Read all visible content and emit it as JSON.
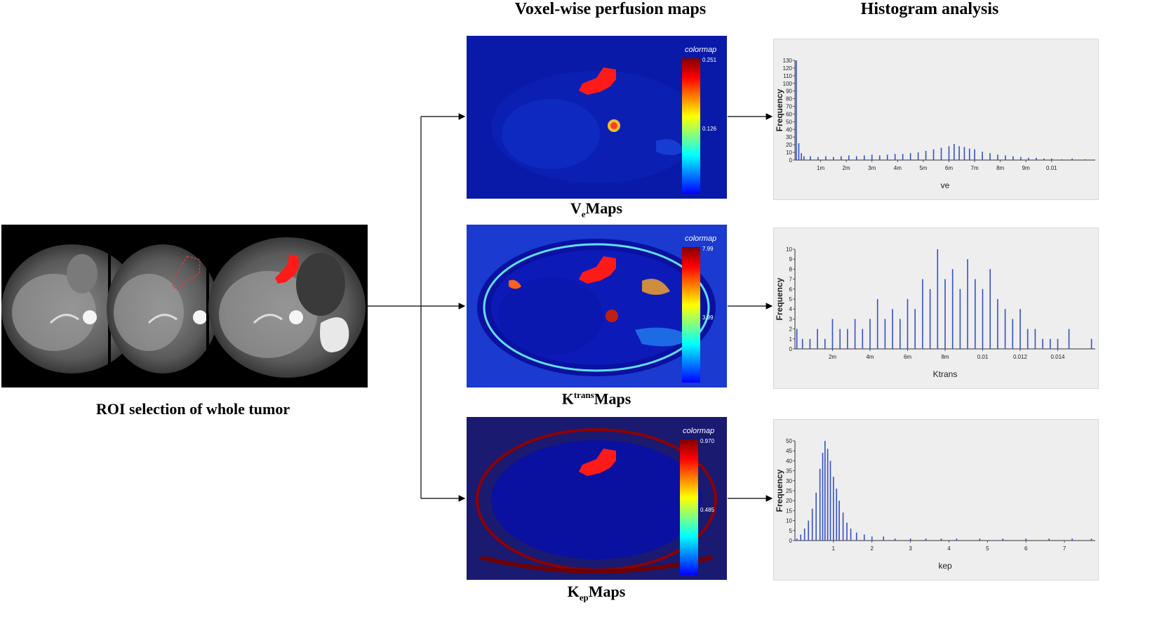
{
  "headings": {
    "perfusion": "Voxel-wise perfusion maps",
    "histogram": "Histogram analysis"
  },
  "roi": {
    "caption": "ROI selection of whole  tumor"
  },
  "maps": [
    {
      "id": "ve",
      "label_main": "V",
      "label_sub": "e",
      "label_rest": "Maps",
      "label_pos": "sub",
      "colorbar": {
        "title": "colormap",
        "max": "0.251",
        "mid": "0.126"
      }
    },
    {
      "id": "ktrans",
      "label_main": "K",
      "label_sub": "trans",
      "label_rest": "Maps",
      "label_pos": "sup",
      "colorbar": {
        "title": "colormap",
        "max": "7.99",
        "mid": "3.99"
      }
    },
    {
      "id": "kep",
      "label_main": "K",
      "label_sub": "ep",
      "label_rest": "Maps",
      "label_pos": "sub",
      "colorbar": {
        "title": "colormap",
        "max": "0.970",
        "mid": "0.485"
      }
    }
  ],
  "chart_data": [
    {
      "type": "bar",
      "xlabel": "ve",
      "ylabel": "Frequency",
      "xlim": [
        0,
        0.0117
      ],
      "ylim": [
        0,
        130
      ],
      "x_ticks": [
        {
          "value": 0.001,
          "label": "1m"
        },
        {
          "value": 0.002,
          "label": "2m"
        },
        {
          "value": 0.003,
          "label": "3m"
        },
        {
          "value": 0.004,
          "label": "4m"
        },
        {
          "value": 0.005,
          "label": "5m"
        },
        {
          "value": 0.006,
          "label": "6m"
        },
        {
          "value": 0.007,
          "label": "7m"
        },
        {
          "value": 0.008,
          "label": "8m"
        },
        {
          "value": 0.009,
          "label": "9m"
        },
        {
          "value": 0.01,
          "label": "0.01"
        }
      ],
      "y_ticks": [
        0,
        10,
        20,
        30,
        40,
        50,
        60,
        70,
        80,
        90,
        100,
        110,
        120,
        130
      ],
      "bins": [
        {
          "x": 5e-05,
          "y": 130
        },
        {
          "x": 0.00015,
          "y": 22
        },
        {
          "x": 0.00025,
          "y": 9
        },
        {
          "x": 0.00035,
          "y": 5
        },
        {
          "x": 0.0006,
          "y": 5
        },
        {
          "x": 0.0009,
          "y": 4
        },
        {
          "x": 0.0012,
          "y": 5
        },
        {
          "x": 0.0015,
          "y": 4
        },
        {
          "x": 0.0018,
          "y": 5
        },
        {
          "x": 0.0021,
          "y": 6
        },
        {
          "x": 0.0024,
          "y": 5
        },
        {
          "x": 0.0027,
          "y": 6
        },
        {
          "x": 0.003,
          "y": 7
        },
        {
          "x": 0.0033,
          "y": 6
        },
        {
          "x": 0.0036,
          "y": 7
        },
        {
          "x": 0.0039,
          "y": 8
        },
        {
          "x": 0.0042,
          "y": 8
        },
        {
          "x": 0.0045,
          "y": 9
        },
        {
          "x": 0.0048,
          "y": 10
        },
        {
          "x": 0.0051,
          "y": 12
        },
        {
          "x": 0.0054,
          "y": 14
        },
        {
          "x": 0.0057,
          "y": 16
        },
        {
          "x": 0.006,
          "y": 18
        },
        {
          "x": 0.0062,
          "y": 21
        },
        {
          "x": 0.0064,
          "y": 18
        },
        {
          "x": 0.0066,
          "y": 17
        },
        {
          "x": 0.0068,
          "y": 15
        },
        {
          "x": 0.007,
          "y": 14
        },
        {
          "x": 0.0073,
          "y": 11
        },
        {
          "x": 0.0076,
          "y": 9
        },
        {
          "x": 0.0079,
          "y": 7
        },
        {
          "x": 0.0082,
          "y": 6
        },
        {
          "x": 0.0085,
          "y": 5
        },
        {
          "x": 0.0088,
          "y": 4
        },
        {
          "x": 0.0091,
          "y": 3
        },
        {
          "x": 0.0094,
          "y": 3
        },
        {
          "x": 0.0097,
          "y": 2
        },
        {
          "x": 0.01,
          "y": 2
        },
        {
          "x": 0.0104,
          "y": 1
        },
        {
          "x": 0.0108,
          "y": 2
        },
        {
          "x": 0.0113,
          "y": 1
        }
      ]
    },
    {
      "type": "bar",
      "xlabel": "Ktrans",
      "ylabel": "Frequency",
      "xlim": [
        0,
        0.016
      ],
      "ylim": [
        0,
        10
      ],
      "x_ticks": [
        {
          "value": 0.002,
          "label": "2m"
        },
        {
          "value": 0.004,
          "label": "4m"
        },
        {
          "value": 0.006,
          "label": "6m"
        },
        {
          "value": 0.008,
          "label": "8m"
        },
        {
          "value": 0.01,
          "label": "0.01"
        },
        {
          "value": 0.012,
          "label": "0.012"
        },
        {
          "value": 0.014,
          "label": "0.014"
        }
      ],
      "y_ticks": [
        0,
        1,
        2,
        3,
        4,
        5,
        6,
        7,
        8,
        9,
        10
      ],
      "bins": [
        {
          "x": 0.0001,
          "y": 2
        },
        {
          "x": 0.0004,
          "y": 1
        },
        {
          "x": 0.0008,
          "y": 1
        },
        {
          "x": 0.0012,
          "y": 2
        },
        {
          "x": 0.0016,
          "y": 1
        },
        {
          "x": 0.002,
          "y": 3
        },
        {
          "x": 0.0024,
          "y": 2
        },
        {
          "x": 0.0028,
          "y": 2
        },
        {
          "x": 0.0032,
          "y": 3
        },
        {
          "x": 0.0036,
          "y": 2
        },
        {
          "x": 0.004,
          "y": 3
        },
        {
          "x": 0.0044,
          "y": 5
        },
        {
          "x": 0.0048,
          "y": 3
        },
        {
          "x": 0.0052,
          "y": 4
        },
        {
          "x": 0.0056,
          "y": 3
        },
        {
          "x": 0.006,
          "y": 5
        },
        {
          "x": 0.0064,
          "y": 4
        },
        {
          "x": 0.0068,
          "y": 7
        },
        {
          "x": 0.0072,
          "y": 6
        },
        {
          "x": 0.0076,
          "y": 10
        },
        {
          "x": 0.008,
          "y": 7
        },
        {
          "x": 0.0084,
          "y": 8
        },
        {
          "x": 0.0088,
          "y": 6
        },
        {
          "x": 0.0092,
          "y": 9
        },
        {
          "x": 0.0096,
          "y": 7
        },
        {
          "x": 0.01,
          "y": 6
        },
        {
          "x": 0.0104,
          "y": 8
        },
        {
          "x": 0.0108,
          "y": 5
        },
        {
          "x": 0.0112,
          "y": 4
        },
        {
          "x": 0.0116,
          "y": 3
        },
        {
          "x": 0.012,
          "y": 4
        },
        {
          "x": 0.0124,
          "y": 2
        },
        {
          "x": 0.0128,
          "y": 2
        },
        {
          "x": 0.0132,
          "y": 1
        },
        {
          "x": 0.0136,
          "y": 1
        },
        {
          "x": 0.014,
          "y": 1
        },
        {
          "x": 0.0146,
          "y": 2
        },
        {
          "x": 0.0158,
          "y": 1
        }
      ]
    },
    {
      "type": "bar",
      "xlabel": "kep",
      "ylabel": "Frequency",
      "xlim": [
        0,
        7.8
      ],
      "ylim": [
        0,
        50
      ],
      "x_ticks": [
        {
          "value": 1,
          "label": "1"
        },
        {
          "value": 2,
          "label": "2"
        },
        {
          "value": 3,
          "label": "3"
        },
        {
          "value": 4,
          "label": "4"
        },
        {
          "value": 5,
          "label": "5"
        },
        {
          "value": 6,
          "label": "6"
        },
        {
          "value": 7,
          "label": "7"
        }
      ],
      "y_ticks": [
        0,
        5,
        10,
        15,
        20,
        25,
        30,
        35,
        40,
        45,
        50
      ],
      "bins": [
        {
          "x": 0.05,
          "y": 1
        },
        {
          "x": 0.15,
          "y": 3
        },
        {
          "x": 0.25,
          "y": 6
        },
        {
          "x": 0.35,
          "y": 10
        },
        {
          "x": 0.45,
          "y": 16
        },
        {
          "x": 0.55,
          "y": 24
        },
        {
          "x": 0.65,
          "y": 36
        },
        {
          "x": 0.72,
          "y": 44
        },
        {
          "x": 0.78,
          "y": 50
        },
        {
          "x": 0.85,
          "y": 46
        },
        {
          "x": 0.92,
          "y": 40
        },
        {
          "x": 1.0,
          "y": 32
        },
        {
          "x": 1.08,
          "y": 26
        },
        {
          "x": 1.15,
          "y": 20
        },
        {
          "x": 1.25,
          "y": 14
        },
        {
          "x": 1.35,
          "y": 9
        },
        {
          "x": 1.45,
          "y": 6
        },
        {
          "x": 1.6,
          "y": 4
        },
        {
          "x": 1.8,
          "y": 3
        },
        {
          "x": 2.0,
          "y": 2
        },
        {
          "x": 2.3,
          "y": 2
        },
        {
          "x": 2.6,
          "y": 1
        },
        {
          "x": 3.0,
          "y": 1
        },
        {
          "x": 3.4,
          "y": 1
        },
        {
          "x": 3.8,
          "y": 1
        },
        {
          "x": 4.2,
          "y": 1
        },
        {
          "x": 4.8,
          "y": 1
        },
        {
          "x": 5.4,
          "y": 1
        },
        {
          "x": 6.0,
          "y": 1
        },
        {
          "x": 6.6,
          "y": 1
        },
        {
          "x": 7.2,
          "y": 1
        },
        {
          "x": 7.7,
          "y": 1
        }
      ]
    }
  ]
}
